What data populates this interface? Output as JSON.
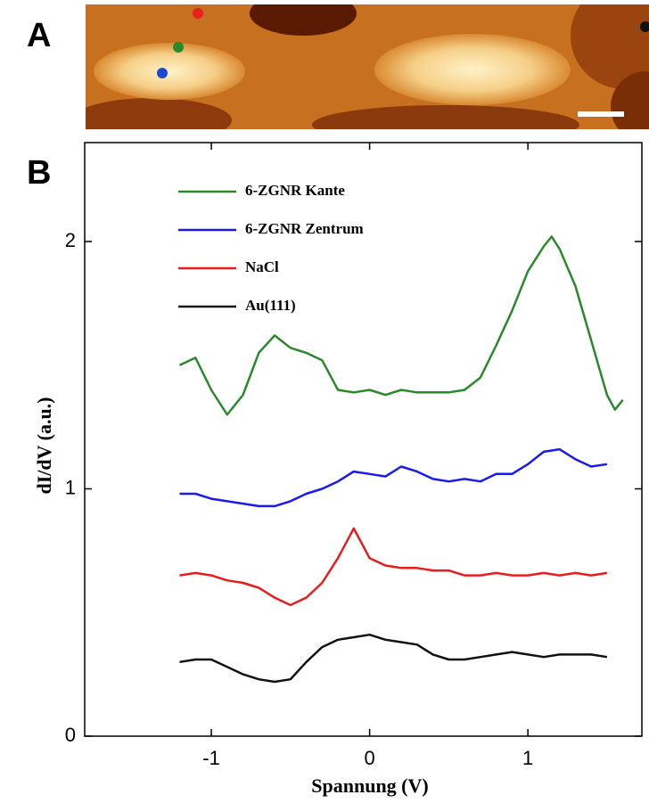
{
  "panels": [
    "A",
    "B"
  ],
  "chart_data": {
    "type": "line",
    "xlabel": "Spannung  (V)",
    "ylabel": "dI/dV  (a.u.)",
    "xlim": [
      -1.8,
      1.72
    ],
    "ylim": [
      0,
      2.4
    ],
    "xticks": [
      -1,
      0,
      1
    ],
    "yticks": [
      0,
      1,
      2
    ],
    "legend": "upper left",
    "series": [
      {
        "name": "6-ZGNR Kante",
        "color": "#2a8a2a",
        "x": [
          -1.2,
          -1.1,
          -1.0,
          -0.9,
          -0.8,
          -0.7,
          -0.6,
          -0.5,
          -0.4,
          -0.3,
          -0.2,
          -0.1,
          0,
          0.1,
          0.2,
          0.3,
          0.4,
          0.5,
          0.6,
          0.7,
          0.8,
          0.9,
          1.0,
          1.1,
          1.15,
          1.2,
          1.3,
          1.4,
          1.5,
          1.55,
          1.6
        ],
        "values": [
          1.5,
          1.53,
          1.4,
          1.3,
          1.38,
          1.55,
          1.62,
          1.57,
          1.55,
          1.52,
          1.4,
          1.39,
          1.4,
          1.38,
          1.4,
          1.39,
          1.39,
          1.39,
          1.4,
          1.45,
          1.58,
          1.72,
          1.88,
          1.98,
          2.02,
          1.97,
          1.82,
          1.6,
          1.38,
          1.32,
          1.36
        ]
      },
      {
        "name": "6-ZGNR Zentrum",
        "color": "#1a1aee",
        "x": [
          -1.2,
          -1.1,
          -1.0,
          -0.9,
          -0.8,
          -0.7,
          -0.6,
          -0.5,
          -0.4,
          -0.3,
          -0.2,
          -0.1,
          0,
          0.1,
          0.2,
          0.3,
          0.4,
          0.5,
          0.6,
          0.7,
          0.8,
          0.9,
          1.0,
          1.1,
          1.2,
          1.3,
          1.4,
          1.5
        ],
        "values": [
          0.98,
          0.98,
          0.96,
          0.95,
          0.94,
          0.93,
          0.93,
          0.95,
          0.98,
          1.0,
          1.03,
          1.07,
          1.06,
          1.05,
          1.09,
          1.07,
          1.04,
          1.03,
          1.04,
          1.03,
          1.06,
          1.06,
          1.1,
          1.15,
          1.16,
          1.12,
          1.09,
          1.1
        ]
      },
      {
        "name": "NaCl",
        "color": "#e81c1c",
        "x": [
          -1.2,
          -1.1,
          -1.0,
          -0.9,
          -0.8,
          -0.7,
          -0.6,
          -0.5,
          -0.4,
          -0.3,
          -0.2,
          -0.1,
          0,
          0.1,
          0.2,
          0.3,
          0.4,
          0.5,
          0.6,
          0.7,
          0.8,
          0.9,
          1.0,
          1.1,
          1.2,
          1.3,
          1.4,
          1.5
        ],
        "values": [
          0.65,
          0.66,
          0.65,
          0.63,
          0.62,
          0.6,
          0.56,
          0.53,
          0.56,
          0.62,
          0.72,
          0.84,
          0.72,
          0.69,
          0.68,
          0.68,
          0.67,
          0.67,
          0.65,
          0.65,
          0.66,
          0.65,
          0.65,
          0.66,
          0.65,
          0.66,
          0.65,
          0.66
        ]
      },
      {
        "name": "Au(111)",
        "color": "#111111",
        "x": [
          -1.2,
          -1.1,
          -1.0,
          -0.9,
          -0.8,
          -0.7,
          -0.6,
          -0.5,
          -0.4,
          -0.3,
          -0.2,
          -0.1,
          0,
          0.1,
          0.2,
          0.3,
          0.4,
          0.5,
          0.6,
          0.7,
          0.8,
          0.9,
          1.0,
          1.1,
          1.2,
          1.3,
          1.4,
          1.5
        ],
        "values": [
          0.3,
          0.31,
          0.31,
          0.28,
          0.25,
          0.23,
          0.22,
          0.23,
          0.3,
          0.36,
          0.39,
          0.4,
          0.41,
          0.39,
          0.38,
          0.37,
          0.33,
          0.31,
          0.31,
          0.32,
          0.33,
          0.34,
          0.33,
          0.32,
          0.33,
          0.33,
          0.33,
          0.32
        ]
      }
    ]
  }
}
